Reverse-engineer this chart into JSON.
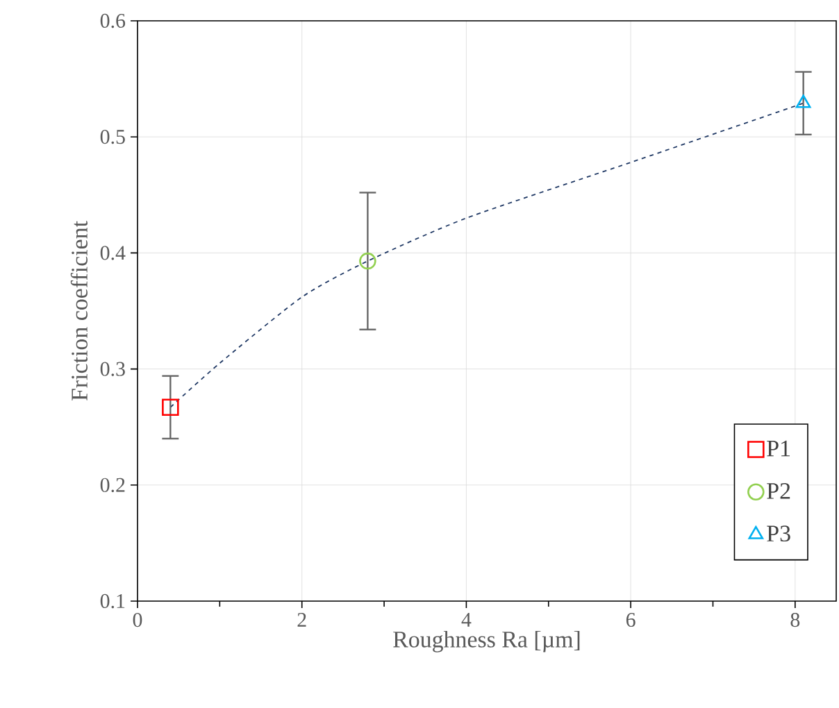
{
  "chart_data": {
    "type": "scatter",
    "xlabel": "Roughness Ra [µm]",
    "ylabel": "Friction coefficient",
    "xlim": [
      0,
      8.5
    ],
    "xticks": [
      0,
      2,
      4,
      6,
      8
    ],
    "ylim": [
      0.1,
      0.6
    ],
    "yticks": [
      0.1,
      0.2,
      0.3,
      0.4,
      0.5,
      0.6
    ],
    "grid": true,
    "legend": "bottom right",
    "series": [
      {
        "name": "P1",
        "marker": "square",
        "color": "#ff0000",
        "x": [
          0.4
        ],
        "values": [
          0.267
        ],
        "errors": [
          [
            0.24,
            0.294
          ]
        ]
      },
      {
        "name": "P2",
        "marker": "circle",
        "color": "#92d050",
        "x": [
          2.8
        ],
        "values": [
          0.393
        ],
        "errors": [
          [
            0.334,
            0.452
          ]
        ]
      },
      {
        "name": "P3",
        "marker": "triangle",
        "color": "#00b0f0",
        "x": [
          8.1
        ],
        "values": [
          0.529
        ],
        "errors": [
          [
            0.502,
            0.556
          ]
        ]
      },
      {
        "type": "line",
        "line_style": "dashed",
        "marker": "none",
        "color": "#1f3864",
        "x": [
          0.4,
          1,
          2,
          2.8,
          4,
          6,
          8.1
        ],
        "values": [
          0.267,
          0.305,
          0.362,
          0.393,
          0.43,
          0.478,
          0.529
        ]
      }
    ]
  }
}
